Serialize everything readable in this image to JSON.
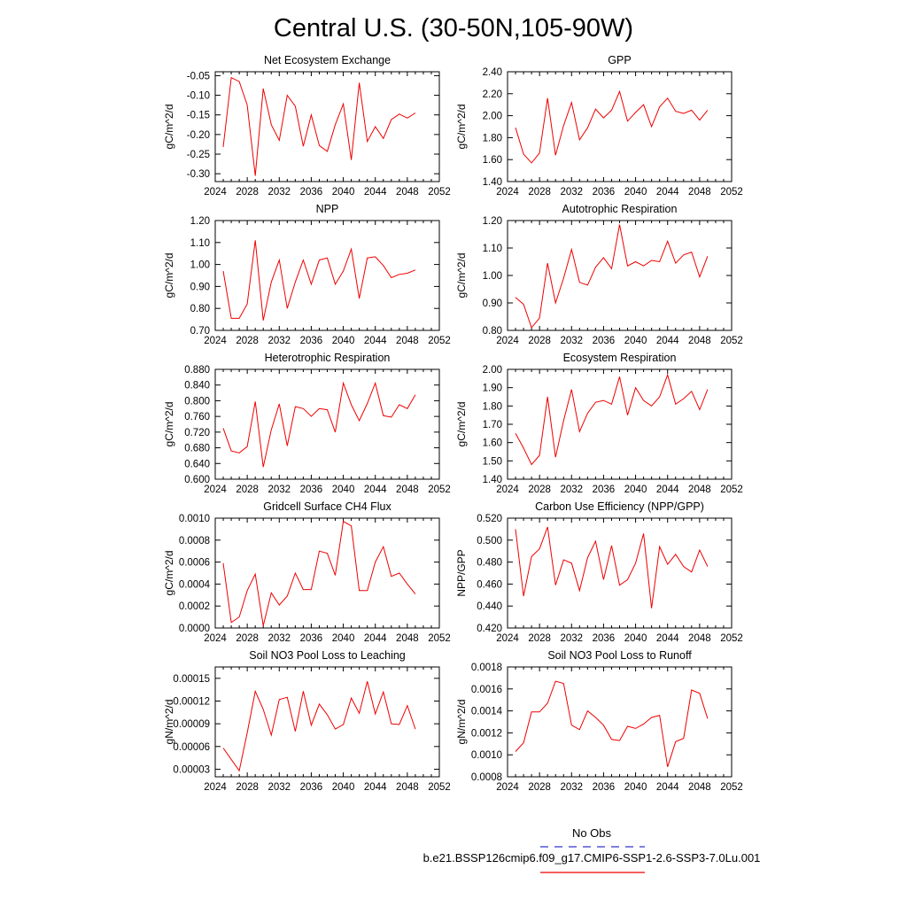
{
  "figure": {
    "title": "Central U.S. (30-50N,105-90W)"
  },
  "legend": {
    "entries": [
      {
        "label": "No Obs",
        "color": "#3333cc",
        "style": "dashed"
      },
      {
        "label": "b.e21.BSSP126cmip6.f09_g17.CMIP6-SSP1-2.6-SSP3-7.0Lu.001",
        "color": "#ee0000",
        "style": "solid"
      }
    ]
  },
  "chart_data": [
    {
      "type": "line",
      "title": "Net Ecosystem Exchange",
      "ylabel": "gC/m^2/d",
      "xlim": [
        2024,
        2052
      ],
      "x_ticks": [
        2024,
        2028,
        2032,
        2036,
        2040,
        2044,
        2048,
        2052
      ],
      "ylim": [
        -0.32,
        -0.04
      ],
      "y_ticks": [
        -0.3,
        -0.25,
        -0.2,
        -0.15,
        -0.1,
        -0.05
      ],
      "y_tick_labels": [
        "-0.30",
        "-0.25",
        "-0.20",
        "-0.15",
        "-0.10",
        "-0.05"
      ],
      "series": [
        {
          "color": "#ee0000",
          "x": [
            2025,
            2026,
            2027,
            2028,
            2029,
            2030,
            2031,
            2032,
            2033,
            2034,
            2035,
            2036,
            2037,
            2038,
            2039,
            2040,
            2041,
            2042,
            2043,
            2044,
            2045,
            2046,
            2047,
            2048,
            2049
          ],
          "values": [
            -0.232,
            -0.055,
            -0.065,
            -0.125,
            -0.305,
            -0.083,
            -0.175,
            -0.215,
            -0.1,
            -0.128,
            -0.23,
            -0.15,
            -0.228,
            -0.243,
            -0.175,
            -0.122,
            -0.265,
            -0.068,
            -0.218,
            -0.18,
            -0.21,
            -0.162,
            -0.148,
            -0.158,
            -0.145
          ]
        }
      ]
    },
    {
      "type": "line",
      "title": "GPP",
      "ylabel": "gC/m^2/d",
      "xlim": [
        2024,
        2052
      ],
      "x_ticks": [
        2024,
        2028,
        2032,
        2036,
        2040,
        2044,
        2048,
        2052
      ],
      "ylim": [
        1.4,
        2.4
      ],
      "y_ticks": [
        1.4,
        1.6,
        1.8,
        2.0,
        2.2,
        2.4
      ],
      "y_tick_labels": [
        "1.40",
        "1.60",
        "1.80",
        "2.00",
        "2.20",
        "2.40"
      ],
      "series": [
        {
          "color": "#ee0000",
          "x": [
            2025,
            2026,
            2027,
            2028,
            2029,
            2030,
            2031,
            2032,
            2033,
            2034,
            2035,
            2036,
            2037,
            2038,
            2039,
            2040,
            2041,
            2042,
            2043,
            2044,
            2045,
            2046,
            2047,
            2048,
            2049
          ],
          "values": [
            1.89,
            1.65,
            1.57,
            1.66,
            2.16,
            1.64,
            1.91,
            2.12,
            1.78,
            1.89,
            2.06,
            1.98,
            2.05,
            2.22,
            1.95,
            2.03,
            2.1,
            1.9,
            2.08,
            2.16,
            2.04,
            2.02,
            2.05,
            1.96,
            2.05
          ]
        }
      ]
    },
    {
      "type": "line",
      "title": "NPP",
      "ylabel": "gC/m^2/d",
      "xlim": [
        2024,
        2052
      ],
      "x_ticks": [
        2024,
        2028,
        2032,
        2036,
        2040,
        2044,
        2048,
        2052
      ],
      "ylim": [
        0.7,
        1.2
      ],
      "y_ticks": [
        0.7,
        0.8,
        0.9,
        1.0,
        1.1,
        1.2
      ],
      "y_tick_labels": [
        "0.70",
        "0.80",
        "0.90",
        "1.00",
        "1.10",
        "1.20"
      ],
      "series": [
        {
          "color": "#ee0000",
          "x": [
            2025,
            2026,
            2027,
            2028,
            2029,
            2030,
            2031,
            2032,
            2033,
            2034,
            2035,
            2036,
            2037,
            2038,
            2039,
            2040,
            2041,
            2042,
            2043,
            2044,
            2045,
            2046,
            2047,
            2048,
            2049
          ],
          "values": [
            0.97,
            0.755,
            0.755,
            0.82,
            1.11,
            0.745,
            0.92,
            1.02,
            0.8,
            0.92,
            1.02,
            0.91,
            1.02,
            1.03,
            0.91,
            0.97,
            1.07,
            0.845,
            1.03,
            1.035,
            0.995,
            0.94,
            0.955,
            0.96,
            0.975
          ]
        }
      ]
    },
    {
      "type": "line",
      "title": "Autotrophic Respiration",
      "ylabel": "gC/m^2/d",
      "xlim": [
        2024,
        2052
      ],
      "x_ticks": [
        2024,
        2028,
        2032,
        2036,
        2040,
        2044,
        2048,
        2052
      ],
      "ylim": [
        0.8,
        1.2
      ],
      "y_ticks": [
        0.8,
        0.9,
        1.0,
        1.1,
        1.2
      ],
      "y_tick_labels": [
        "0.80",
        "0.90",
        "1.00",
        "1.10",
        "1.20"
      ],
      "series": [
        {
          "color": "#ee0000",
          "x": [
            2025,
            2026,
            2027,
            2028,
            2029,
            2030,
            2031,
            2032,
            2033,
            2034,
            2035,
            2036,
            2037,
            2038,
            2039,
            2040,
            2041,
            2042,
            2043,
            2044,
            2045,
            2046,
            2047,
            2048,
            2049
          ],
          "values": [
            0.92,
            0.895,
            0.81,
            0.845,
            1.045,
            0.9,
            0.99,
            1.095,
            0.975,
            0.965,
            1.03,
            1.065,
            1.025,
            1.185,
            1.035,
            1.05,
            1.035,
            1.055,
            1.05,
            1.125,
            1.045,
            1.075,
            1.085,
            0.995,
            1.07
          ]
        }
      ]
    },
    {
      "type": "line",
      "title": "Heterotrophic Respiration",
      "ylabel": "gC/m^2/d",
      "xlim": [
        2024,
        2052
      ],
      "x_ticks": [
        2024,
        2028,
        2032,
        2036,
        2040,
        2044,
        2048,
        2052
      ],
      "ylim": [
        0.6,
        0.88
      ],
      "y_ticks": [
        0.6,
        0.64,
        0.68,
        0.72,
        0.76,
        0.8,
        0.84,
        0.88
      ],
      "y_tick_labels": [
        "0.600",
        "0.640",
        "0.680",
        "0.720",
        "0.760",
        "0.800",
        "0.840",
        "0.880"
      ],
      "series": [
        {
          "color": "#ee0000",
          "x": [
            2025,
            2026,
            2027,
            2028,
            2029,
            2030,
            2031,
            2032,
            2033,
            2034,
            2035,
            2036,
            2037,
            2038,
            2039,
            2040,
            2041,
            2042,
            2043,
            2044,
            2045,
            2046,
            2047,
            2048,
            2049
          ],
          "values": [
            0.73,
            0.672,
            0.667,
            0.683,
            0.798,
            0.631,
            0.726,
            0.792,
            0.685,
            0.785,
            0.78,
            0.76,
            0.78,
            0.777,
            0.72,
            0.845,
            0.79,
            0.749,
            0.793,
            0.845,
            0.762,
            0.758,
            0.79,
            0.78,
            0.815
          ]
        }
      ]
    },
    {
      "type": "line",
      "title": "Ecosystem Respiration",
      "ylabel": "gC/m^2/d",
      "xlim": [
        2024,
        2052
      ],
      "x_ticks": [
        2024,
        2028,
        2032,
        2036,
        2040,
        2044,
        2048,
        2052
      ],
      "ylim": [
        1.4,
        2.0
      ],
      "y_ticks": [
        1.4,
        1.5,
        1.6,
        1.7,
        1.8,
        1.9,
        2.0
      ],
      "y_tick_labels": [
        "1.40",
        "1.50",
        "1.60",
        "1.70",
        "1.80",
        "1.90",
        "2.00"
      ],
      "series": [
        {
          "color": "#ee0000",
          "x": [
            2025,
            2026,
            2027,
            2028,
            2029,
            2030,
            2031,
            2032,
            2033,
            2034,
            2035,
            2036,
            2037,
            2038,
            2039,
            2040,
            2041,
            2042,
            2043,
            2044,
            2045,
            2046,
            2047,
            2048,
            2049
          ],
          "values": [
            1.65,
            1.57,
            1.48,
            1.53,
            1.85,
            1.52,
            1.72,
            1.89,
            1.66,
            1.76,
            1.82,
            1.83,
            1.81,
            1.96,
            1.75,
            1.9,
            1.83,
            1.8,
            1.85,
            1.97,
            1.81,
            1.84,
            1.88,
            1.78,
            1.89
          ]
        }
      ]
    },
    {
      "type": "line",
      "title": "Gridcell Surface CH4 Flux",
      "ylabel": "gC/m^2/d",
      "xlim": [
        2024,
        2052
      ],
      "x_ticks": [
        2024,
        2028,
        2032,
        2036,
        2040,
        2044,
        2048,
        2052
      ],
      "ylim": [
        0.0,
        0.001
      ],
      "y_ticks": [
        0.0,
        0.0002,
        0.0004,
        0.0006,
        0.0008,
        0.001
      ],
      "y_tick_labels": [
        "0.0000",
        "0.0002",
        "0.0004",
        "0.0006",
        "0.0008",
        "0.0010"
      ],
      "series": [
        {
          "color": "#ee0000",
          "x": [
            2025,
            2026,
            2027,
            2028,
            2029,
            2030,
            2031,
            2032,
            2033,
            2034,
            2035,
            2036,
            2037,
            2038,
            2039,
            2040,
            2041,
            2042,
            2043,
            2044,
            2045,
            2046,
            2047,
            2048,
            2049
          ],
          "values": [
            0.00059,
            5e-05,
            0.0001,
            0.00034,
            0.00049,
            2e-05,
            0.00032,
            0.00021,
            0.00029,
            0.0005,
            0.00035,
            0.00035,
            0.0007,
            0.00068,
            0.00048,
            0.00097,
            0.00093,
            0.00034,
            0.00034,
            0.0006,
            0.00074,
            0.00047,
            0.0005,
            0.0004,
            0.00031
          ]
        }
      ]
    },
    {
      "type": "line",
      "title": "Carbon Use Efficiency (NPP/GPP)",
      "ylabel": "NPP/GPP",
      "xlim": [
        2024,
        2052
      ],
      "x_ticks": [
        2024,
        2028,
        2032,
        2036,
        2040,
        2044,
        2048,
        2052
      ],
      "ylim": [
        0.42,
        0.52
      ],
      "y_ticks": [
        0.42,
        0.44,
        0.46,
        0.48,
        0.5,
        0.52
      ],
      "y_tick_labels": [
        "0.420",
        "0.440",
        "0.460",
        "0.480",
        "0.500",
        "0.520"
      ],
      "series": [
        {
          "color": "#ee0000",
          "x": [
            2025,
            2026,
            2027,
            2028,
            2029,
            2030,
            2031,
            2032,
            2033,
            2034,
            2035,
            2036,
            2037,
            2038,
            2039,
            2040,
            2041,
            2042,
            2043,
            2044,
            2045,
            2046,
            2047,
            2048,
            2049
          ],
          "values": [
            0.51,
            0.449,
            0.485,
            0.492,
            0.512,
            0.459,
            0.482,
            0.479,
            0.454,
            0.484,
            0.499,
            0.464,
            0.495,
            0.459,
            0.464,
            0.479,
            0.506,
            0.438,
            0.494,
            0.478,
            0.487,
            0.476,
            0.471,
            0.491,
            0.476
          ]
        }
      ]
    },
    {
      "type": "line",
      "title": "Soil NO3 Pool Loss to Leaching",
      "ylabel": "gN/m^2/d",
      "xlim": [
        2024,
        2052
      ],
      "x_ticks": [
        2024,
        2028,
        2032,
        2036,
        2040,
        2044,
        2048,
        2052
      ],
      "ylim": [
        2e-05,
        0.000165
      ],
      "y_ticks": [
        3e-05,
        6e-05,
        9e-05,
        0.00012,
        0.00015
      ],
      "y_tick_labels": [
        "0.00003",
        "0.00006",
        "0.00009",
        "0.00012",
        "0.00015"
      ],
      "series": [
        {
          "color": "#ee0000",
          "x": [
            2025,
            2027,
            2028,
            2029,
            2030,
            2031,
            2032,
            2033,
            2034,
            2035,
            2036,
            2037,
            2038,
            2039,
            2040,
            2041,
            2042,
            2043,
            2044,
            2045,
            2046,
            2047,
            2048,
            2049
          ],
          "values": [
            5.8e-05,
            2.8e-05,
            7.8e-05,
            0.000133,
            0.000109,
            7.5e-05,
            0.000122,
            0.000125,
            8e-05,
            0.000133,
            8.8e-05,
            0.000116,
            0.000102,
            8.3e-05,
            8.9e-05,
            0.000124,
            0.000104,
            0.000146,
            0.000103,
            0.000132,
            9e-05,
            8.9e-05,
            0.000114,
            8.3e-05
          ]
        }
      ]
    },
    {
      "type": "line",
      "title": "Soil NO3 Pool Loss to Runoff",
      "ylabel": "gN/m^2/d",
      "xlim": [
        2024,
        2052
      ],
      "x_ticks": [
        2024,
        2028,
        2032,
        2036,
        2040,
        2044,
        2048,
        2052
      ],
      "ylim": [
        0.0008,
        0.0018
      ],
      "y_ticks": [
        0.0008,
        0.001,
        0.0012,
        0.0014,
        0.0016,
        0.0018
      ],
      "y_tick_labels": [
        "0.0008",
        "0.0010",
        "0.0012",
        "0.0014",
        "0.0016",
        "0.0018"
      ],
      "series": [
        {
          "color": "#ee0000",
          "x": [
            2025,
            2026,
            2027,
            2028,
            2029,
            2030,
            2031,
            2032,
            2033,
            2034,
            2035,
            2036,
            2037,
            2038,
            2039,
            2040,
            2041,
            2042,
            2043,
            2044,
            2045,
            2046,
            2047,
            2048,
            2049
          ],
          "values": [
            0.00103,
            0.00111,
            0.00139,
            0.00139,
            0.00147,
            0.00167,
            0.00165,
            0.00127,
            0.00123,
            0.0014,
            0.00134,
            0.00127,
            0.00114,
            0.00113,
            0.00126,
            0.00124,
            0.00128,
            0.00134,
            0.00136,
            0.00089,
            0.00112,
            0.00115,
            0.00159,
            0.00156,
            0.00133
          ]
        }
      ]
    }
  ]
}
